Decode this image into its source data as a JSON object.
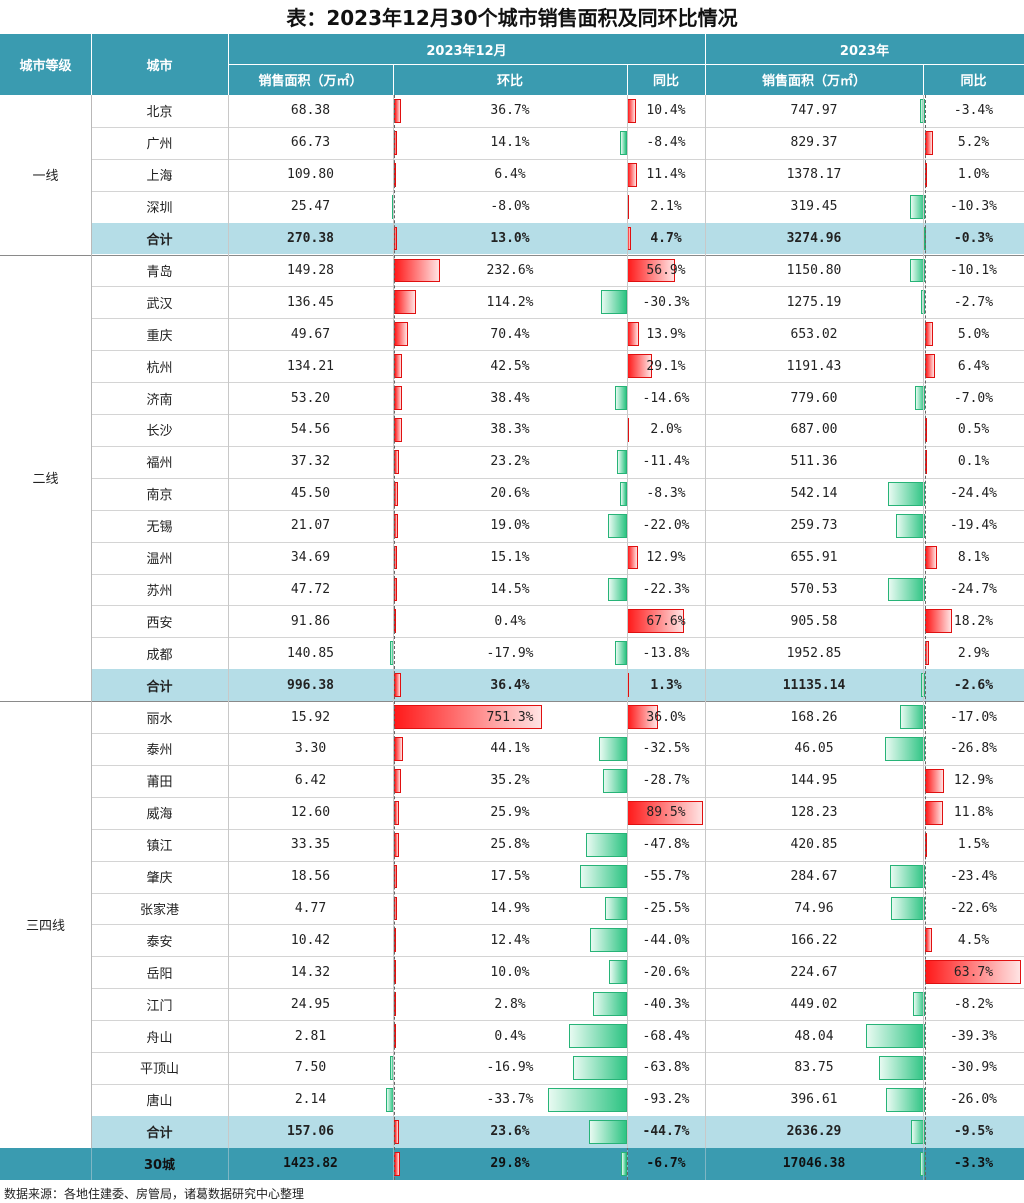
{
  "title": "表：2023年12月30个城市销售面积及同环比情况",
  "headers": {
    "tier": "城市等级",
    "city": "城市",
    "group_dec": "2023年12月",
    "group_year": "2023年",
    "area": "销售面积（万㎡）",
    "mom": "环比",
    "yoy": "同比",
    "area_year": "销售面积（万㎡）",
    "yoy_year": "同比"
  },
  "tiers": [
    {
      "name": "一线",
      "rows": [
        {
          "city": "北京",
          "area": "68.38",
          "mom": "36.7%",
          "yoy": "10.4%",
          "year_area": "747.97",
          "year_yoy": "-3.4%"
        },
        {
          "city": "广州",
          "area": "66.73",
          "mom": "14.1%",
          "yoy": "-8.4%",
          "year_area": "829.37",
          "year_yoy": "5.2%"
        },
        {
          "city": "上海",
          "area": "109.80",
          "mom": "6.4%",
          "yoy": "11.4%",
          "year_area": "1378.17",
          "year_yoy": "1.0%"
        },
        {
          "city": "深圳",
          "area": "25.47",
          "mom": "-8.0%",
          "yoy": "2.1%",
          "year_area": "319.45",
          "year_yoy": "-10.3%"
        }
      ],
      "total": {
        "city": "合计",
        "area": "270.38",
        "mom": "13.0%",
        "yoy": "4.7%",
        "year_area": "3274.96",
        "year_yoy": "-0.3%"
      }
    },
    {
      "name": "二线",
      "rows": [
        {
          "city": "青岛",
          "area": "149.28",
          "mom": "232.6%",
          "yoy": "56.9%",
          "year_area": "1150.80",
          "year_yoy": "-10.1%"
        },
        {
          "city": "武汉",
          "area": "136.45",
          "mom": "114.2%",
          "yoy": "-30.3%",
          "year_area": "1275.19",
          "year_yoy": "-2.7%"
        },
        {
          "city": "重庆",
          "area": "49.67",
          "mom": "70.4%",
          "yoy": "13.9%",
          "year_area": "653.02",
          "year_yoy": "5.0%"
        },
        {
          "city": "杭州",
          "area": "134.21",
          "mom": "42.5%",
          "yoy": "29.1%",
          "year_area": "1191.43",
          "year_yoy": "6.4%"
        },
        {
          "city": "济南",
          "area": "53.20",
          "mom": "38.4%",
          "yoy": "-14.6%",
          "year_area": "779.60",
          "year_yoy": "-7.0%"
        },
        {
          "city": "长沙",
          "area": "54.56",
          "mom": "38.3%",
          "yoy": "2.0%",
          "year_area": "687.00",
          "year_yoy": "0.5%"
        },
        {
          "city": "福州",
          "area": "37.32",
          "mom": "23.2%",
          "yoy": "-11.4%",
          "year_area": "511.36",
          "year_yoy": "0.1%"
        },
        {
          "city": "南京",
          "area": "45.50",
          "mom": "20.6%",
          "yoy": "-8.3%",
          "year_area": "542.14",
          "year_yoy": "-24.4%"
        },
        {
          "city": "无锡",
          "area": "21.07",
          "mom": "19.0%",
          "yoy": "-22.0%",
          "year_area": "259.73",
          "year_yoy": "-19.4%"
        },
        {
          "city": "温州",
          "area": "34.69",
          "mom": "15.1%",
          "yoy": "12.9%",
          "year_area": "655.91",
          "year_yoy": "8.1%"
        },
        {
          "city": "苏州",
          "area": "47.72",
          "mom": "14.5%",
          "yoy": "-22.3%",
          "year_area": "570.53",
          "year_yoy": "-24.7%"
        },
        {
          "city": "西安",
          "area": "91.86",
          "mom": "0.4%",
          "yoy": "67.6%",
          "year_area": "905.58",
          "year_yoy": "18.2%"
        },
        {
          "city": "成都",
          "area": "140.85",
          "mom": "-17.9%",
          "yoy": "-13.8%",
          "year_area": "1952.85",
          "year_yoy": "2.9%"
        }
      ],
      "total": {
        "city": "合计",
        "area": "996.38",
        "mom": "36.4%",
        "yoy": "1.3%",
        "year_area": "11135.14",
        "year_yoy": "-2.6%"
      }
    },
    {
      "name": "三四线",
      "rows": [
        {
          "city": "丽水",
          "area": "15.92",
          "mom": "751.3%",
          "yoy": "36.0%",
          "year_area": "168.26",
          "year_yoy": "-17.0%"
        },
        {
          "city": "泰州",
          "area": "3.30",
          "mom": "44.1%",
          "yoy": "-32.5%",
          "year_area": "46.05",
          "year_yoy": "-26.8%"
        },
        {
          "city": "莆田",
          "area": "6.42",
          "mom": "35.2%",
          "yoy": "-28.7%",
          "year_area": "144.95",
          "year_yoy": "12.9%"
        },
        {
          "city": "威海",
          "area": "12.60",
          "mom": "25.9%",
          "yoy": "89.5%",
          "year_area": "128.23",
          "year_yoy": "11.8%"
        },
        {
          "city": "镇江",
          "area": "33.35",
          "mom": "25.8%",
          "yoy": "-47.8%",
          "year_area": "420.85",
          "year_yoy": "1.5%"
        },
        {
          "city": "肇庆",
          "area": "18.56",
          "mom": "17.5%",
          "yoy": "-55.7%",
          "year_area": "284.67",
          "year_yoy": "-23.4%"
        },
        {
          "city": "张家港",
          "area": "4.77",
          "mom": "14.9%",
          "yoy": "-25.5%",
          "year_area": "74.96",
          "year_yoy": "-22.6%"
        },
        {
          "city": "泰安",
          "area": "10.42",
          "mom": "12.4%",
          "yoy": "-44.0%",
          "year_area": "166.22",
          "year_yoy": "4.5%"
        },
        {
          "city": "岳阳",
          "area": "14.32",
          "mom": "10.0%",
          "yoy": "-20.6%",
          "year_area": "224.67",
          "year_yoy": "63.7%"
        },
        {
          "city": "江门",
          "area": "24.95",
          "mom": "2.8%",
          "yoy": "-40.3%",
          "year_area": "449.02",
          "year_yoy": "-8.2%"
        },
        {
          "city": "舟山",
          "area": "2.81",
          "mom": "0.4%",
          "yoy": "-68.4%",
          "year_area": "48.04",
          "year_yoy": "-39.3%"
        },
        {
          "city": "平顶山",
          "area": "7.50",
          "mom": "-16.9%",
          "yoy": "-63.8%",
          "year_area": "83.75",
          "year_yoy": "-30.9%"
        },
        {
          "city": "唐山",
          "area": "2.14",
          "mom": "-33.7%",
          "yoy": "-93.2%",
          "year_area": "396.61",
          "year_yoy": "-26.0%"
        }
      ],
      "total": {
        "city": "合计",
        "area": "157.06",
        "mom": "23.6%",
        "yoy": "-44.7%",
        "year_area": "2636.29",
        "year_yoy": "-9.5%"
      }
    }
  ],
  "grand_total": {
    "city": "30城",
    "area": "1423.82",
    "mom": "29.8%",
    "yoy": "-6.7%",
    "year_area": "17046.38",
    "year_yoy": "-3.3%"
  },
  "source": "数据来源：各地住建委、房管局，诸葛数据研究中心整理",
  "colors": {
    "header_bg": "#3a9bb0",
    "subtotal_bg": "#b5dde7",
    "grand_total_bg": "#3a9bb0",
    "positive_bar": "#ff1a1a",
    "negative_bar": "#2ec483"
  }
}
